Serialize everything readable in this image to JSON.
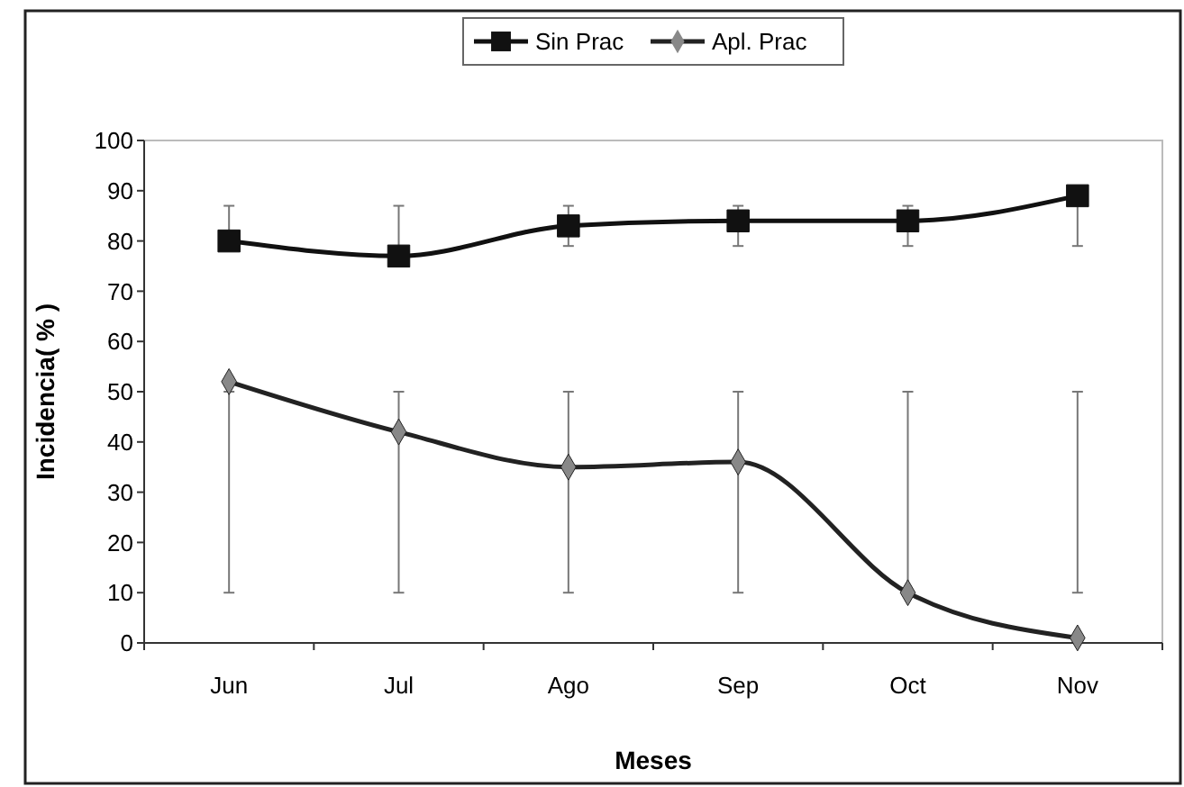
{
  "chart_data": {
    "type": "line",
    "xlabel": "Meses",
    "ylabel": "Incidencia( % )",
    "categories": [
      "Jun",
      "Jul",
      "Ago",
      "Sep",
      "Oct",
      "Nov"
    ],
    "series": [
      {
        "name": "Sin Prac",
        "color": "#111111",
        "marker": "square",
        "values": [
          80,
          77,
          83,
          84,
          84,
          89
        ],
        "errors": [
          [
            80,
            87
          ],
          [
            77,
            87
          ],
          [
            79,
            87
          ],
          [
            79,
            87
          ],
          [
            79,
            87
          ],
          [
            79,
            89
          ]
        ]
      },
      {
        "name": "Apl. Prac",
        "color": "#222222",
        "marker": "diamond",
        "values": [
          52,
          42,
          35,
          36,
          10,
          1
        ],
        "errors": [
          [
            10,
            50
          ],
          [
            10,
            50
          ],
          [
            10,
            50
          ],
          [
            10,
            50
          ],
          [
            10,
            50
          ],
          [
            10,
            50
          ]
        ]
      }
    ],
    "ylim": [
      0,
      100
    ],
    "yticks": [
      0,
      10,
      20,
      30,
      40,
      50,
      60,
      70,
      80,
      90,
      100
    ],
    "grid": false,
    "legend": "top"
  }
}
